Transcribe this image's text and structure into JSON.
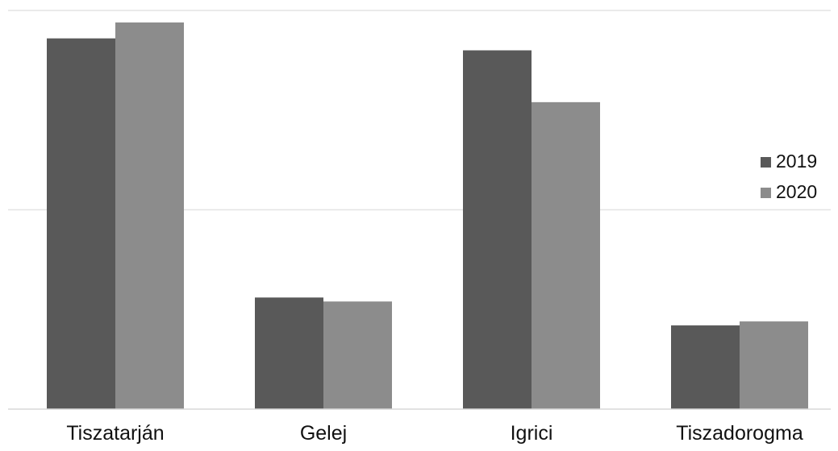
{
  "chart_data": {
    "type": "bar",
    "categories": [
      "Tiszatarján",
      "Gelej",
      "Igrici",
      "Tiszadorogma"
    ],
    "series": [
      {
        "name": "2019",
        "color": "#595959",
        "values": [
          93,
          28,
          90,
          21
        ]
      },
      {
        "name": "2020",
        "color": "#8c8c8c",
        "values": [
          97,
          27,
          77,
          22
        ]
      }
    ],
    "ylim": [
      0,
      100
    ],
    "grid": true,
    "legend": "right",
    "title": "",
    "xlabel": "",
    "ylabel": ""
  }
}
